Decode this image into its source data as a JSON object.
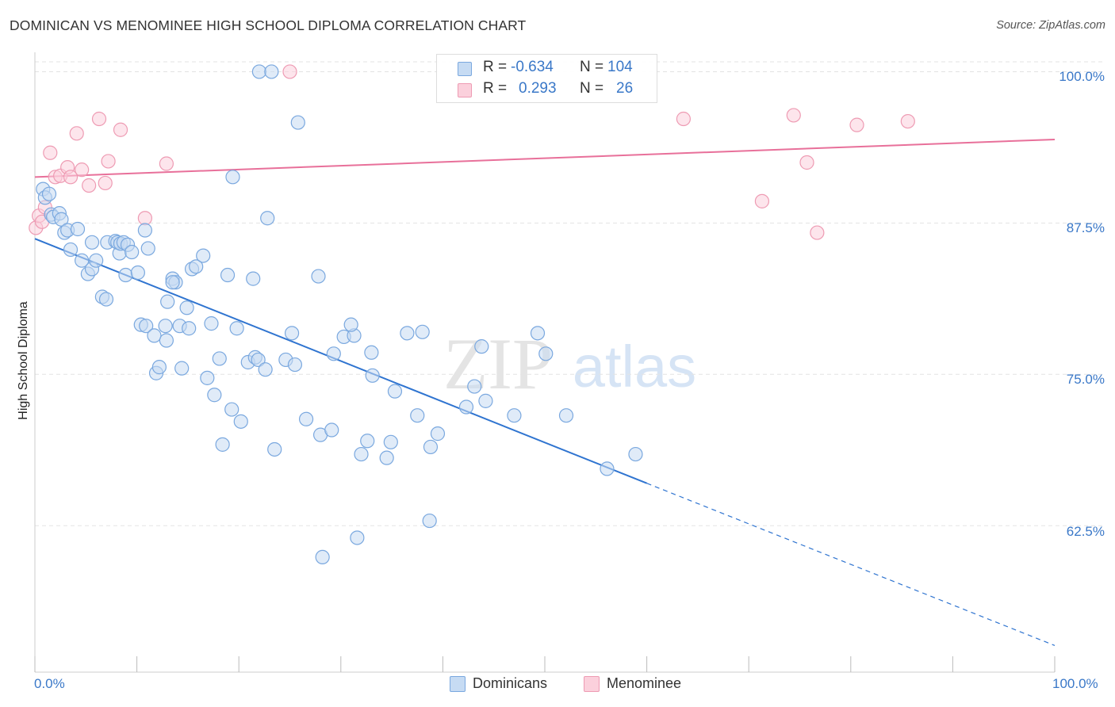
{
  "title": "DOMINICAN VS MENOMINEE HIGH SCHOOL DIPLOMA CORRELATION CHART",
  "source": "Source: ZipAtlas.com",
  "watermark": {
    "zip": "ZIP",
    "atlas": "atlas"
  },
  "stats": {
    "r_label": "R =",
    "n_label": "N =",
    "dominicans": {
      "r": "-0.634",
      "n": "104"
    },
    "menominee": {
      "r": "0.293",
      "n": "26"
    }
  },
  "legend": {
    "dominicans": "Dominicans",
    "menominee": "Menominee"
  },
  "colors": {
    "blue_fill": "#c6dbf3",
    "blue_stroke": "#7aa8df",
    "blue_line": "#2f74d0",
    "pink_fill": "#fbd0dc",
    "pink_stroke": "#ee9bb3",
    "pink_line": "#e8709a",
    "axis_text": "#3a78c8",
    "grid": "#e3e3e3"
  },
  "chart_data": {
    "type": "scatter",
    "title": "DOMINICAN VS MENOMINEE HIGH SCHOOL DIPLOMA CORRELATION CHART",
    "xlabel": "",
    "ylabel": "High School Diploma",
    "xlim": [
      0,
      100
    ],
    "ylim": [
      50.4,
      101.6
    ],
    "x_tick_labels": [
      "0.0%",
      "100.0%"
    ],
    "y_ticks": [
      62.5,
      75.0,
      87.5,
      100.0
    ],
    "y_tick_labels": [
      "62.5%",
      "75.0%",
      "87.5%",
      "100.0%"
    ],
    "grid": true,
    "legend_position": "bottom-center",
    "series": [
      {
        "name": "Dominicans",
        "color": "#7aa8df",
        "points": [
          [
            0.8,
            90.3
          ],
          [
            1.0,
            89.6
          ],
          [
            1.4,
            89.9
          ],
          [
            1.6,
            88.2
          ],
          [
            1.8,
            88.0
          ],
          [
            2.4,
            88.3
          ],
          [
            2.6,
            87.8
          ],
          [
            2.9,
            86.7
          ],
          [
            3.2,
            86.9
          ],
          [
            4.2,
            87.0
          ],
          [
            3.5,
            85.3
          ],
          [
            4.6,
            84.4
          ],
          [
            5.2,
            83.3
          ],
          [
            5.6,
            83.7
          ],
          [
            6.0,
            84.4
          ],
          [
            5.6,
            85.9
          ],
          [
            6.6,
            81.4
          ],
          [
            7.0,
            81.2
          ],
          [
            7.1,
            85.9
          ],
          [
            8.3,
            85.0
          ],
          [
            7.9,
            86.0
          ],
          [
            8.1,
            85.9
          ],
          [
            8.4,
            85.8
          ],
          [
            8.7,
            85.9
          ],
          [
            8.9,
            83.2
          ],
          [
            9.1,
            85.7
          ],
          [
            9.5,
            85.1
          ],
          [
            10.1,
            83.4
          ],
          [
            10.8,
            86.9
          ],
          [
            10.4,
            79.1
          ],
          [
            10.9,
            79.0
          ],
          [
            11.1,
            85.4
          ],
          [
            11.7,
            78.2
          ],
          [
            11.9,
            75.1
          ],
          [
            12.2,
            75.6
          ],
          [
            12.8,
            79.0
          ],
          [
            12.9,
            77.8
          ],
          [
            13.0,
            81.0
          ],
          [
            13.5,
            82.9
          ],
          [
            13.8,
            82.6
          ],
          [
            14.2,
            79.0
          ],
          [
            14.4,
            75.5
          ],
          [
            14.9,
            80.5
          ],
          [
            15.1,
            78.8
          ],
          [
            15.4,
            83.7
          ],
          [
            15.8,
            83.9
          ],
          [
            16.5,
            84.8
          ],
          [
            16.9,
            74.7
          ],
          [
            17.3,
            79.2
          ],
          [
            17.6,
            73.3
          ],
          [
            18.1,
            76.3
          ],
          [
            18.4,
            69.2
          ],
          [
            18.9,
            83.2
          ],
          [
            19.3,
            72.1
          ],
          [
            19.4,
            91.3
          ],
          [
            19.8,
            78.8
          ],
          [
            20.2,
            71.1
          ],
          [
            20.9,
            76.0
          ],
          [
            21.4,
            82.9
          ],
          [
            21.6,
            76.4
          ],
          [
            21.9,
            76.2
          ],
          [
            22.0,
            100.0
          ],
          [
            22.6,
            75.4
          ],
          [
            22.8,
            87.9
          ],
          [
            23.2,
            100.0
          ],
          [
            23.5,
            68.8
          ],
          [
            24.6,
            76.2
          ],
          [
            25.2,
            78.4
          ],
          [
            25.5,
            75.8
          ],
          [
            25.8,
            95.8
          ],
          [
            26.6,
            71.3
          ],
          [
            27.8,
            83.1
          ],
          [
            28.0,
            70.0
          ],
          [
            28.2,
            59.9
          ],
          [
            29.1,
            70.4
          ],
          [
            29.3,
            76.7
          ],
          [
            30.3,
            78.1
          ],
          [
            31.3,
            78.2
          ],
          [
            31.0,
            79.1
          ],
          [
            31.6,
            61.5
          ],
          [
            32.0,
            68.4
          ],
          [
            32.6,
            69.5
          ],
          [
            33.0,
            76.8
          ],
          [
            33.1,
            74.9
          ],
          [
            34.5,
            68.1
          ],
          [
            34.9,
            69.4
          ],
          [
            35.3,
            73.6
          ],
          [
            36.5,
            78.4
          ],
          [
            37.5,
            71.6
          ],
          [
            38.0,
            78.5
          ],
          [
            38.7,
            62.9
          ],
          [
            38.8,
            69.0
          ],
          [
            39.5,
            70.1
          ],
          [
            42.3,
            72.3
          ],
          [
            43.1,
            74.0
          ],
          [
            43.8,
            77.3
          ],
          [
            44.2,
            72.8
          ],
          [
            47.0,
            71.6
          ],
          [
            49.3,
            78.4
          ],
          [
            50.1,
            76.7
          ],
          [
            52.1,
            71.6
          ],
          [
            58.9,
            68.4
          ],
          [
            56.1,
            67.2
          ],
          [
            13.5,
            82.6
          ]
        ]
      },
      {
        "name": "Menominee",
        "color": "#ee9bb3",
        "points": [
          [
            0.1,
            87.1
          ],
          [
            0.4,
            88.1
          ],
          [
            0.7,
            87.6
          ],
          [
            1.0,
            88.8
          ],
          [
            1.5,
            93.3
          ],
          [
            2.0,
            91.3
          ],
          [
            2.5,
            91.4
          ],
          [
            3.2,
            92.1
          ],
          [
            3.5,
            91.3
          ],
          [
            4.1,
            94.9
          ],
          [
            4.6,
            91.9
          ],
          [
            5.3,
            90.6
          ],
          [
            6.3,
            96.1
          ],
          [
            6.9,
            90.8
          ],
          [
            7.2,
            92.6
          ],
          [
            8.4,
            95.2
          ],
          [
            10.8,
            87.9
          ],
          [
            12.9,
            92.4
          ],
          [
            25.0,
            100.0
          ],
          [
            63.6,
            96.1
          ],
          [
            71.3,
            89.3
          ],
          [
            74.4,
            96.4
          ],
          [
            75.7,
            92.5
          ],
          [
            76.7,
            86.7
          ],
          [
            80.6,
            95.6
          ],
          [
            85.6,
            95.9
          ]
        ]
      }
    ],
    "trendlines": [
      {
        "series": "Dominicans",
        "x0": 0,
        "y0": 86.2,
        "x1": 60,
        "y1": 66.0,
        "dashed_to_x": 100,
        "dashed_to_y": 52.6
      },
      {
        "series": "Menominee",
        "x0": 0,
        "y0": 91.3,
        "x1": 100,
        "y1": 94.4
      }
    ]
  }
}
